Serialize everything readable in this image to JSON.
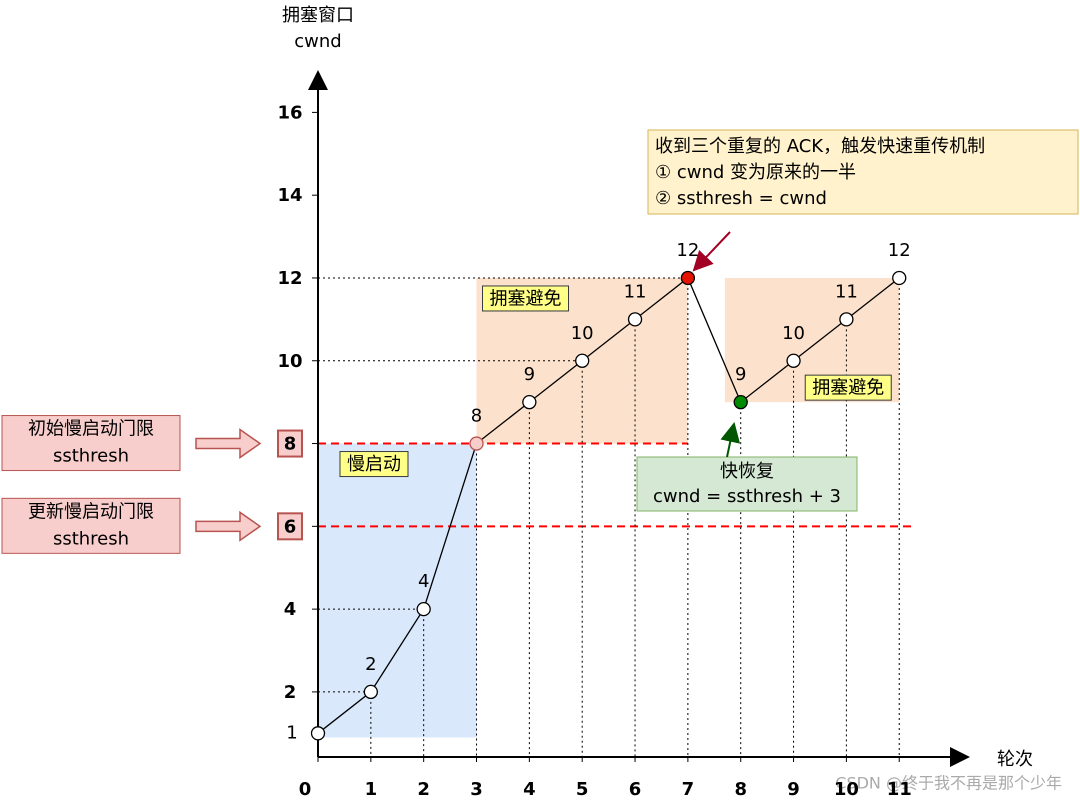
{
  "chart_data": {
    "type": "line",
    "y_label": [
      "拥塞窗口",
      "cwnd"
    ],
    "x_label": "轮次",
    "x": [
      0,
      1,
      2,
      3,
      4,
      5,
      6,
      7,
      8,
      9,
      10,
      11
    ],
    "series": [
      {
        "color": "#000000",
        "values": [
          1,
          2,
          4,
          8,
          9,
          10,
          11,
          12,
          9,
          10,
          11,
          12
        ],
        "marker_colors": [
          "#ffffff",
          "#ffffff",
          "#ffffff",
          "#f8cecc",
          "#ffffff",
          "#ffffff",
          "#ffffff",
          "#e51400",
          "#008a00",
          "#ffffff",
          "#ffffff",
          "#ffffff"
        ]
      }
    ],
    "xlim": [
      0,
      12.15
    ],
    "ylim": [
      0.5,
      17
    ],
    "xticks": [
      0,
      1,
      2,
      3,
      4,
      5,
      6,
      7,
      8,
      9,
      10,
      11
    ],
    "yticks": [
      2,
      4,
      6,
      8,
      10,
      12,
      14,
      16
    ],
    "thresholds": [
      {
        "lines": [
          "初始慢启动门限",
          "ssthresh"
        ],
        "value": 8,
        "xrange": [
          0,
          7
        ]
      },
      {
        "lines": [
          "更新慢启动门限",
          "ssthresh"
        ],
        "value": 6,
        "xrange": [
          0,
          11.3
        ]
      }
    ],
    "regions": [
      {
        "label": "慢启动",
        "xrange": [
          0,
          3
        ],
        "yrange": [
          0.9,
          8
        ],
        "color": "#dae8fc",
        "label_corner": "top-left"
      },
      {
        "label": "拥塞避免",
        "xrange": [
          3,
          7
        ],
        "yrange": [
          8,
          12
        ],
        "color": "#fce2cc",
        "label_corner": "top-left"
      },
      {
        "label": "拥塞避免",
        "xrange": [
          7.7,
          11
        ],
        "yrange": [
          9,
          12
        ],
        "color": "#fce2cc",
        "label_corner": "bottom-right"
      }
    ],
    "annotations": [
      {
        "lines": [
          "收到三个重复的 ACK，触发快速重传机制",
          "① cwnd 变为原来的一半",
          "② ssthresh = cwnd"
        ]
      },
      {
        "lines": [
          "快恢复",
          "cwnd = ssthresh + 3"
        ]
      }
    ],
    "watermark": "CSDN @终于我不再是那个少年"
  }
}
